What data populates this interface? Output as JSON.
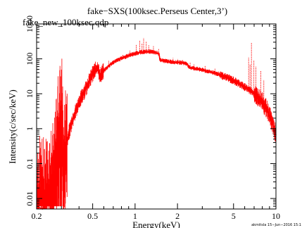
{
  "chart_data": {
    "type": "line",
    "title": "fake−SXS(100ksec.Perseus Center,3’)",
    "subtitle": "fake_new_100ksec.qdp",
    "xlabel": "Energy(keV)",
    "ylabel": "Intensity(c/sec/keV)",
    "x_scale": "log",
    "y_scale": "log",
    "xlim": [
      0.2,
      10
    ],
    "ylim": [
      0.005,
      1000
    ],
    "x_ticks": [
      {
        "value": 0.2,
        "label": "0.2"
      },
      {
        "value": 0.5,
        "label": "0.5"
      },
      {
        "value": 1,
        "label": "1"
      },
      {
        "value": 2,
        "label": "2"
      },
      {
        "value": 5,
        "label": "5"
      },
      {
        "value": 10,
        "label": "10"
      }
    ],
    "y_ticks": [
      {
        "value": 0.01,
        "label": "0.01"
      },
      {
        "value": 0.1,
        "label": "0.1"
      },
      {
        "value": 1,
        "label": "1"
      },
      {
        "value": 10,
        "label": "10"
      },
      {
        "value": 100,
        "label": "100"
      },
      {
        "value": 1000,
        "label": "1000"
      }
    ],
    "series_color": "#ff0000",
    "spectrum": [
      [
        0.2,
        0.006
      ],
      [
        0.22,
        0.005
      ],
      [
        0.24,
        0.007
      ],
      [
        0.26,
        0.012
      ],
      [
        0.27,
        0.02
      ],
      [
        0.28,
        0.3
      ],
      [
        0.29,
        0.55
      ],
      [
        0.3,
        0.9
      ],
      [
        0.305,
        1.05
      ],
      [
        0.31,
        0.02
      ],
      [
        0.32,
        0.2
      ],
      [
        0.34,
        0.8
      ],
      [
        0.36,
        1.8
      ],
      [
        0.38,
        3.3
      ],
      [
        0.4,
        5.5
      ],
      [
        0.42,
        8.5
      ],
      [
        0.45,
        15
      ],
      [
        0.48,
        26
      ],
      [
        0.5,
        38
      ],
      [
        0.52,
        48
      ],
      [
        0.55,
        55
      ],
      [
        0.56,
        30
      ],
      [
        0.58,
        38
      ],
      [
        0.6,
        46
      ],
      [
        0.65,
        62
      ],
      [
        0.7,
        80
      ],
      [
        0.8,
        103
      ],
      [
        0.9,
        125
      ],
      [
        1.0,
        142
      ],
      [
        1.1,
        155
      ],
      [
        1.2,
        160
      ],
      [
        1.3,
        160
      ],
      [
        1.4,
        150
      ],
      [
        1.48,
        140
      ],
      [
        1.5,
        92
      ],
      [
        1.6,
        88
      ],
      [
        1.8,
        82
      ],
      [
        2.0,
        79
      ],
      [
        2.2,
        76
      ],
      [
        2.35,
        72
      ],
      [
        2.4,
        57
      ],
      [
        2.6,
        54
      ],
      [
        3.0,
        48
      ],
      [
        3.5,
        41
      ],
      [
        4.0,
        35
      ],
      [
        4.5,
        29
      ],
      [
        5.0,
        24
      ],
      [
        5.5,
        19.5
      ],
      [
        6.0,
        15.5
      ],
      [
        6.5,
        12.8
      ],
      [
        7.0,
        10
      ],
      [
        7.5,
        7.8
      ],
      [
        8.0,
        5.8
      ],
      [
        8.5,
        3.8
      ],
      [
        9.0,
        2.4
      ],
      [
        9.5,
        1.3
      ],
      [
        10.0,
        0.65
      ]
    ],
    "lines": [
      [
        0.3,
        1.1
      ],
      [
        0.57,
        60
      ],
      [
        0.65,
        90
      ],
      [
        0.82,
        130
      ],
      [
        0.92,
        170
      ],
      [
        1.02,
        260
      ],
      [
        1.08,
        330
      ],
      [
        1.12,
        280
      ],
      [
        1.15,
        400
      ],
      [
        1.2,
        310
      ],
      [
        1.25,
        250
      ],
      [
        1.35,
        230
      ],
      [
        1.47,
        190
      ],
      [
        1.86,
        105
      ],
      [
        2.01,
        100
      ],
      [
        2.18,
        95
      ],
      [
        2.46,
        80
      ],
      [
        2.62,
        70
      ],
      [
        3.14,
        62
      ],
      [
        3.69,
        52
      ],
      [
        3.9,
        45
      ],
      [
        6.4,
        110
      ],
      [
        6.55,
        70
      ],
      [
        6.7,
        290
      ],
      [
        6.97,
        90
      ],
      [
        7.2,
        60
      ],
      [
        7.8,
        45
      ],
      [
        8.2,
        25
      ]
    ],
    "noise_floor": 0.006
  },
  "footer": {
    "stamp": "akmitsla 15−Jun−2016 15:1"
  }
}
